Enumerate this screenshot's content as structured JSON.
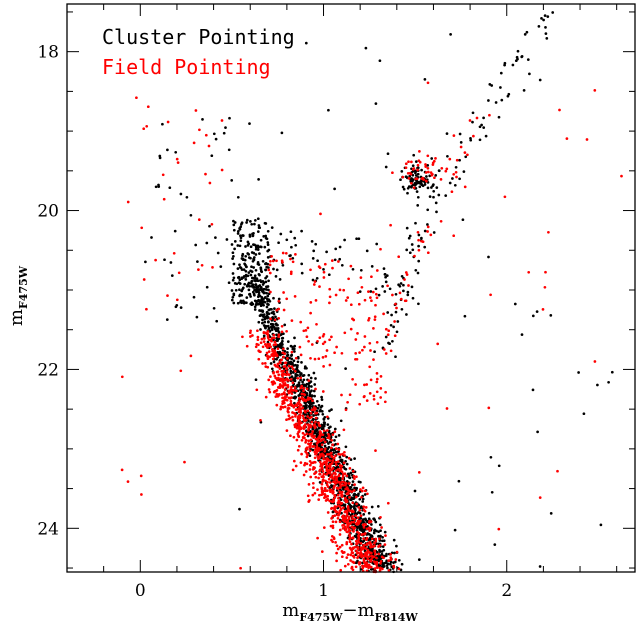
{
  "chart_data": {
    "type": "scatter",
    "title": "",
    "xlabel": {
      "main1": "m",
      "sub1": "F475W",
      "sep": "−m",
      "sub2": "F814W"
    },
    "ylabel": {
      "main": "m",
      "sub": "F475W"
    },
    "xlim": [
      -0.4,
      2.7
    ],
    "ylim": [
      24.55,
      17.4
    ],
    "y_inverted": true,
    "x_ticks": [
      0,
      1,
      2
    ],
    "x_tick_labels": [
      "0",
      "1",
      "2"
    ],
    "y_ticks": [
      18,
      20,
      22,
      24
    ],
    "y_tick_labels": [
      "18",
      "20",
      "22",
      "24"
    ],
    "minor_ticks": {
      "x_step": 0.2,
      "y_step": 0.5
    },
    "legend_position": "top-left",
    "series": [
      {
        "name": "Cluster Pointing",
        "color": "#000000",
        "components": [
          {
            "kind": "main_sequence",
            "count": 1300,
            "x_at_turnoff": 0.58,
            "y_start": 20.7,
            "y_end": 24.55,
            "slope_dx_per_mag": 0.19,
            "scatter": 0.035
          },
          {
            "kind": "turnoff_clump",
            "count": 200,
            "x_range": [
              0.5,
              0.7
            ],
            "y_range": [
              20.1,
              21.2
            ]
          },
          {
            "kind": "subgiant_branch",
            "count": 55,
            "x_range": [
              0.7,
              1.35
            ],
            "y_range": [
              20.2,
              20.9
            ]
          },
          {
            "kind": "red_giant_branch",
            "count": 120,
            "x_range": [
              1.35,
              2.25
            ],
            "y_range": [
              21.8,
              17.6
            ]
          },
          {
            "kind": "red_clump",
            "count": 80,
            "center": [
              1.5,
              19.6
            ],
            "spread": [
              0.04,
              0.1
            ]
          },
          {
            "kind": "blue_stragglers",
            "count": 45,
            "x_range": [
              0.02,
              0.5
            ],
            "y_range": [
              18.8,
              21.5
            ]
          },
          {
            "kind": "field_scatter",
            "count": 60,
            "x_range": [
              0.5,
              2.6
            ],
            "y_range": [
              17.6,
              24.55
            ]
          }
        ]
      },
      {
        "name": "Field Pointing",
        "color": "#ff0000",
        "components": [
          {
            "kind": "main_sequence",
            "count": 1000,
            "x_at_turnoff": 0.66,
            "y_start": 21.5,
            "y_end": 24.55,
            "slope_dx_per_mag": 0.2,
            "scatter": 0.05
          },
          {
            "kind": "subgiant_branch",
            "count": 160,
            "x_range": [
              0.7,
              1.3
            ],
            "y_range": [
              20.5,
              22.3
            ]
          },
          {
            "kind": "red_giant_branch",
            "count": 60,
            "x_range": [
              1.3,
              1.85
            ],
            "y_range": [
              22.5,
              18.8
            ]
          },
          {
            "kind": "red_clump",
            "count": 40,
            "center": [
              1.52,
              19.5
            ],
            "spread": [
              0.06,
              0.12
            ]
          },
          {
            "kind": "blue_stragglers",
            "count": 30,
            "x_range": [
              0.0,
              0.45
            ],
            "y_range": [
              18.6,
              21.3
            ]
          },
          {
            "kind": "field_scatter",
            "count": 45,
            "x_range": [
              -0.1,
              2.65
            ],
            "y_range": [
              18.3,
              24.55
            ]
          }
        ]
      }
    ]
  }
}
